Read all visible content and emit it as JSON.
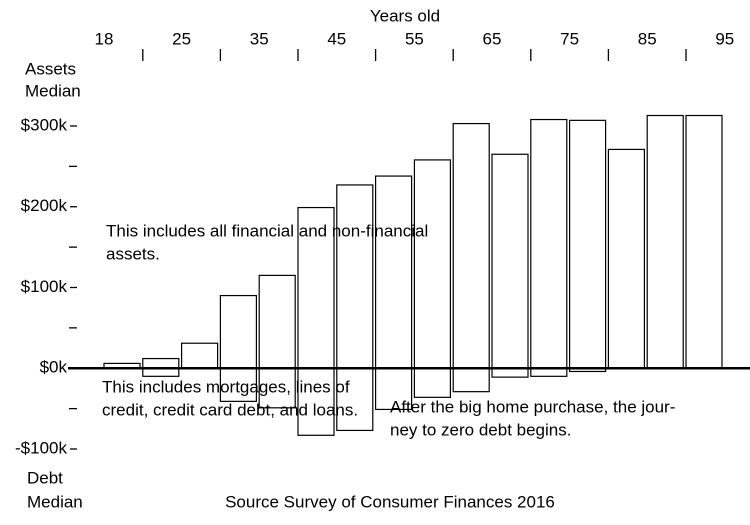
{
  "chart_data": {
    "type": "bar",
    "title": "Years old",
    "y_label_top": [
      "Assets",
      "Median"
    ],
    "y_label_bottom": [
      "Debt",
      "Median"
    ],
    "source": "Source Survey of Consumer Finances 2016",
    "annotations": [
      [
        "This includes all financial and non-financial",
        "assets."
      ],
      [
        "This includes mortgages, lines of",
        "credit, credit card debt, and loans."
      ],
      [
        "After the big home purchase, the jour-",
        "ney to zero debt begins."
      ]
    ],
    "xticks": [
      18,
      null,
      25,
      null,
      35,
      null,
      45,
      null,
      55,
      null,
      65,
      null,
      75,
      null,
      85,
      null,
      95
    ],
    "series": [
      {
        "values": [
          6,
          12,
          31,
          90,
          115,
          199,
          227,
          238,
          258,
          303,
          265,
          308,
          307,
          271,
          313,
          313
        ]
      },
      {
        "values": [
          0,
          -10,
          0,
          -41,
          -49,
          -83,
          -77,
          -51,
          -36,
          -29,
          -11,
          -10,
          -4,
          0,
          0,
          0
        ]
      }
    ],
    "fill": "#ffffff",
    "stroke": "#000000",
    "ylim": [
      -100,
      300
    ],
    "yticks": [
      {
        "value": 300,
        "label": "$300k"
      },
      {
        "value": 200,
        "label": "$200k"
      },
      {
        "value": 100,
        "label": "$100k"
      },
      {
        "value": 0,
        "label": "$0k"
      },
      {
        "value": -100,
        "label": "-$100k"
      }
    ],
    "yminor": [
      250,
      150,
      50,
      -50
    ]
  }
}
